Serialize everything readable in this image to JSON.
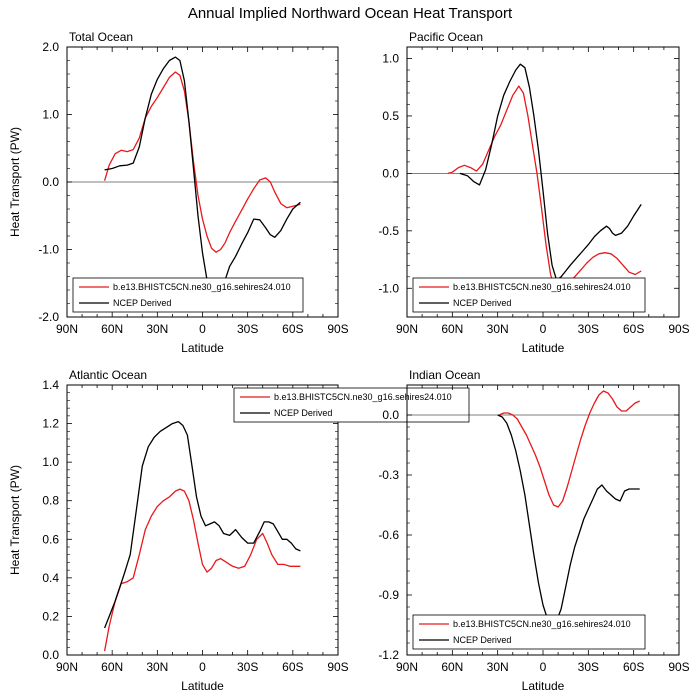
{
  "title": "Annual Implied Northward Ocean Heat Transport",
  "colors": {
    "model": "#e8191c",
    "ncep": "#000000"
  },
  "chart_data": [
    {
      "type": "line",
      "title": "Total Ocean",
      "xlabel": "Latitude",
      "ylabel": "Heat Transport (PW)",
      "xlim": [
        90,
        -90
      ],
      "ylim": [
        -2.0,
        2.0
      ],
      "xticks": [
        {
          "v": 90,
          "label": "90N"
        },
        {
          "v": 60,
          "label": "60N"
        },
        {
          "v": 30,
          "label": "30N"
        },
        {
          "v": 0,
          "label": "0"
        },
        {
          "v": -30,
          "label": "30S"
        },
        {
          "v": -60,
          "label": "60S"
        },
        {
          "v": -90,
          "label": "90S"
        }
      ],
      "yticks": [
        {
          "v": 2.0,
          "label": "2.0"
        },
        {
          "v": 1.0,
          "label": "1.0"
        },
        {
          "v": 0.0,
          "label": "0.0"
        },
        {
          "v": -1.0,
          "label": "-1.0"
        },
        {
          "v": -2.0,
          "label": "-2.0"
        }
      ],
      "zero_line": true,
      "legend": {
        "position": "bottom-left"
      },
      "series": [
        {
          "name": "b.e13.BHISTC5CN.ne30_g16.sehires24.010",
          "color": "#e8191c",
          "x": [
            65,
            62,
            58,
            54,
            50,
            46,
            42,
            38,
            34,
            30,
            26,
            22,
            18,
            15,
            12,
            9,
            6,
            3,
            0,
            -3,
            -6,
            -9,
            -12,
            -15,
            -18,
            -22,
            -26,
            -30,
            -34,
            -38,
            -42,
            -45,
            -48,
            -52,
            -56,
            -60,
            -65
          ],
          "y": [
            0.02,
            0.25,
            0.42,
            0.47,
            0.45,
            0.48,
            0.65,
            0.95,
            1.12,
            1.25,
            1.4,
            1.55,
            1.63,
            1.58,
            1.35,
            0.9,
            0.3,
            -0.2,
            -0.55,
            -0.8,
            -0.98,
            -1.04,
            -1.0,
            -0.9,
            -0.75,
            -0.58,
            -0.42,
            -0.25,
            -0.1,
            0.03,
            0.06,
            0.0,
            -0.15,
            -0.32,
            -0.38,
            -0.36,
            -0.33
          ]
        },
        {
          "name": "NCEP Derived",
          "color": "#000000",
          "x": [
            65,
            60,
            55,
            50,
            46,
            42,
            38,
            34,
            30,
            26,
            22,
            18,
            15,
            12,
            9,
            6,
            3,
            0,
            -3,
            -6,
            -9,
            -12,
            -15,
            -18,
            -22,
            -26,
            -30,
            -34,
            -38,
            -42,
            -45,
            -48,
            -52,
            -56,
            -60,
            -65
          ],
          "y": [
            0.18,
            0.2,
            0.24,
            0.25,
            0.28,
            0.52,
            0.95,
            1.3,
            1.52,
            1.68,
            1.8,
            1.85,
            1.8,
            1.5,
            0.9,
            0.2,
            -0.5,
            -1.05,
            -1.45,
            -1.62,
            -1.65,
            -1.6,
            -1.45,
            -1.25,
            -1.1,
            -0.92,
            -0.75,
            -0.55,
            -0.56,
            -0.68,
            -0.78,
            -0.82,
            -0.72,
            -0.55,
            -0.4,
            -0.3
          ]
        }
      ]
    },
    {
      "type": "line",
      "title": "Pacific Ocean",
      "xlabel": "Latitude",
      "ylabel": "",
      "xlim": [
        90,
        -90
      ],
      "ylim": [
        -1.25,
        1.1
      ],
      "xticks": [
        {
          "v": 90,
          "label": "90N"
        },
        {
          "v": 60,
          "label": "60N"
        },
        {
          "v": 30,
          "label": "30N"
        },
        {
          "v": 0,
          "label": "0"
        },
        {
          "v": -30,
          "label": "30S"
        },
        {
          "v": -60,
          "label": "60S"
        },
        {
          "v": -90,
          "label": "90S"
        }
      ],
      "yticks": [
        {
          "v": 1.0,
          "label": "1.0"
        },
        {
          "v": 0.5,
          "label": "0.5"
        },
        {
          "v": 0.0,
          "label": "0.0"
        },
        {
          "v": -0.5,
          "label": "-0.5"
        },
        {
          "v": -1.0,
          "label": "-1.0"
        }
      ],
      "zero_line": true,
      "legend": {
        "position": "bottom-left"
      },
      "series": [
        {
          "name": "b.e13.BHISTC5CN.ne30_g16.sehires24.010",
          "color": "#e8191c",
          "x": [
            63,
            60,
            56,
            52,
            48,
            44,
            40,
            36,
            32,
            28,
            24,
            20,
            16,
            13,
            10,
            7,
            4,
            1,
            -2,
            -5,
            -8,
            -11,
            -14,
            -17,
            -21,
            -25,
            -29,
            -33,
            -37,
            -41,
            -45,
            -49,
            -53,
            -57,
            -61,
            -65
          ],
          "y": [
            0.0,
            0.01,
            0.05,
            0.07,
            0.05,
            0.02,
            0.08,
            0.2,
            0.32,
            0.42,
            0.55,
            0.68,
            0.76,
            0.7,
            0.5,
            0.25,
            0.0,
            -0.3,
            -0.62,
            -0.88,
            -1.02,
            -1.05,
            -1.02,
            -0.96,
            -0.9,
            -0.84,
            -0.78,
            -0.73,
            -0.7,
            -0.69,
            -0.7,
            -0.74,
            -0.8,
            -0.86,
            -0.88,
            -0.85
          ]
        },
        {
          "name": "NCEP Derived",
          "color": "#000000",
          "x": [
            55,
            50,
            46,
            42,
            38,
            34,
            30,
            26,
            22,
            18,
            15,
            12,
            9,
            6,
            3,
            0,
            -3,
            -6,
            -9,
            -12,
            -15,
            -18,
            -22,
            -26,
            -30,
            -34,
            -38,
            -42,
            -44,
            -46,
            -48,
            -52,
            -56,
            -60,
            -65
          ],
          "y": [
            0.0,
            -0.02,
            -0.07,
            -0.1,
            0.03,
            0.25,
            0.5,
            0.68,
            0.8,
            0.9,
            0.95,
            0.92,
            0.75,
            0.5,
            0.2,
            -0.15,
            -0.52,
            -0.8,
            -0.93,
            -0.9,
            -0.85,
            -0.8,
            -0.74,
            -0.68,
            -0.62,
            -0.55,
            -0.5,
            -0.46,
            -0.48,
            -0.52,
            -0.54,
            -0.52,
            -0.46,
            -0.37,
            -0.27
          ]
        }
      ]
    },
    {
      "type": "line",
      "title": "Atlantic Ocean",
      "xlabel": "Latitude",
      "ylabel": "Heat Transport (PW)",
      "xlim": [
        90,
        -90
      ],
      "ylim": [
        0.0,
        1.4
      ],
      "xticks": [
        {
          "v": 90,
          "label": "90N"
        },
        {
          "v": 60,
          "label": "60N"
        },
        {
          "v": 30,
          "label": "30N"
        },
        {
          "v": 0,
          "label": "0"
        },
        {
          "v": -30,
          "label": "30S"
        },
        {
          "v": -60,
          "label": "60S"
        },
        {
          "v": -90,
          "label": "90S"
        }
      ],
      "yticks": [
        {
          "v": 1.4,
          "label": "1.4"
        },
        {
          "v": 1.2,
          "label": "1.2"
        },
        {
          "v": 1.0,
          "label": "1.0"
        },
        {
          "v": 0.8,
          "label": "0.8"
        },
        {
          "v": 0.6,
          "label": "0.6"
        },
        {
          "v": 0.4,
          "label": "0.4"
        },
        {
          "v": 0.2,
          "label": "0.2"
        },
        {
          "v": 0.0,
          "label": "0.0"
        }
      ],
      "zero_line": false,
      "legend": {
        "position": "top-center"
      },
      "series": [
        {
          "name": "b.e13.BHISTC5CN.ne30_g16.sehires24.010",
          "color": "#e8191c",
          "x": [
            65,
            62,
            58,
            54,
            50,
            46,
            42,
            38,
            34,
            30,
            26,
            22,
            18,
            15,
            12,
            9,
            6,
            3,
            0,
            -3,
            -6,
            -9,
            -12,
            -16,
            -20,
            -24,
            -28,
            -32,
            -36,
            -40,
            -43,
            -46,
            -50,
            -54,
            -58,
            -62,
            -65
          ],
          "y": [
            0.02,
            0.15,
            0.28,
            0.37,
            0.38,
            0.4,
            0.52,
            0.65,
            0.72,
            0.77,
            0.8,
            0.82,
            0.85,
            0.86,
            0.85,
            0.8,
            0.7,
            0.58,
            0.47,
            0.43,
            0.45,
            0.49,
            0.5,
            0.48,
            0.46,
            0.45,
            0.46,
            0.52,
            0.6,
            0.63,
            0.58,
            0.52,
            0.47,
            0.47,
            0.46,
            0.46,
            0.46
          ]
        },
        {
          "name": "NCEP Derived",
          "color": "#000000",
          "x": [
            65,
            62,
            58,
            55,
            52,
            48,
            44,
            40,
            36,
            32,
            28,
            24,
            20,
            16,
            13,
            10,
            7,
            4,
            1,
            -2,
            -5,
            -8,
            -11,
            -14,
            -18,
            -22,
            -26,
            -30,
            -34,
            -38,
            -41,
            -44,
            -47,
            -50,
            -53,
            -56,
            -59,
            -62,
            -65
          ],
          "y": [
            0.14,
            0.2,
            0.28,
            0.35,
            0.42,
            0.52,
            0.75,
            0.98,
            1.08,
            1.13,
            1.16,
            1.18,
            1.2,
            1.21,
            1.19,
            1.14,
            0.98,
            0.82,
            0.72,
            0.67,
            0.68,
            0.69,
            0.67,
            0.63,
            0.62,
            0.65,
            0.61,
            0.58,
            0.58,
            0.64,
            0.69,
            0.69,
            0.68,
            0.64,
            0.6,
            0.6,
            0.58,
            0.55,
            0.54
          ]
        }
      ]
    },
    {
      "type": "line",
      "title": "Indian Ocean",
      "xlabel": "Latitude",
      "ylabel": "",
      "xlim": [
        90,
        -90
      ],
      "ylim": [
        -1.2,
        0.15
      ],
      "xticks": [
        {
          "v": 90,
          "label": "90N"
        },
        {
          "v": 60,
          "label": "60N"
        },
        {
          "v": 30,
          "label": "30N"
        },
        {
          "v": 0,
          "label": "0"
        },
        {
          "v": -30,
          "label": "30S"
        },
        {
          "v": -60,
          "label": "60S"
        },
        {
          "v": -90,
          "label": "90S"
        }
      ],
      "yticks": [
        {
          "v": 0.0,
          "label": "0.0"
        },
        {
          "v": -0.3,
          "label": "-0.3"
        },
        {
          "v": -0.6,
          "label": "-0.6"
        },
        {
          "v": -0.9,
          "label": "-0.9"
        },
        {
          "v": -1.2,
          "label": "-1.2"
        }
      ],
      "zero_line": true,
      "legend": {
        "position": "bottom-left"
      },
      "series": [
        {
          "name": "b.e13.BHISTC5CN.ne30_g16.sehires24.010",
          "color": "#e8191c",
          "x": [
            29,
            26,
            23,
            20,
            17,
            14,
            11,
            8,
            5,
            2,
            -1,
            -4,
            -7,
            -10,
            -13,
            -16,
            -19,
            -22,
            -25,
            -28,
            -31,
            -34,
            -37,
            -40,
            -43,
            -46,
            -49,
            -52,
            -55,
            -58,
            -61,
            -64
          ],
          "y": [
            0.0,
            0.01,
            0.01,
            0.0,
            -0.02,
            -0.06,
            -0.1,
            -0.15,
            -0.2,
            -0.26,
            -0.33,
            -0.4,
            -0.45,
            -0.46,
            -0.43,
            -0.36,
            -0.28,
            -0.2,
            -0.12,
            -0.05,
            0.01,
            0.06,
            0.1,
            0.12,
            0.11,
            0.08,
            0.04,
            0.02,
            0.02,
            0.04,
            0.06,
            0.07
          ]
        },
        {
          "name": "NCEP Derived",
          "color": "#000000",
          "x": [
            30,
            27,
            24,
            21,
            18,
            15,
            12,
            9,
            6,
            3,
            0,
            -3,
            -6,
            -9,
            -12,
            -15,
            -18,
            -21,
            -24,
            -27,
            -30,
            -33,
            -36,
            -39,
            -42,
            -45,
            -48,
            -51,
            -54,
            -57,
            -60,
            -64
          ],
          "y": [
            0.0,
            -0.01,
            -0.04,
            -0.1,
            -0.18,
            -0.28,
            -0.4,
            -0.55,
            -0.7,
            -0.84,
            -0.95,
            -1.02,
            -1.05,
            -1.03,
            -0.97,
            -0.86,
            -0.75,
            -0.66,
            -0.59,
            -0.52,
            -0.47,
            -0.42,
            -0.37,
            -0.35,
            -0.38,
            -0.4,
            -0.42,
            -0.43,
            -0.38,
            -0.37,
            -0.37,
            -0.37
          ]
        }
      ]
    }
  ]
}
